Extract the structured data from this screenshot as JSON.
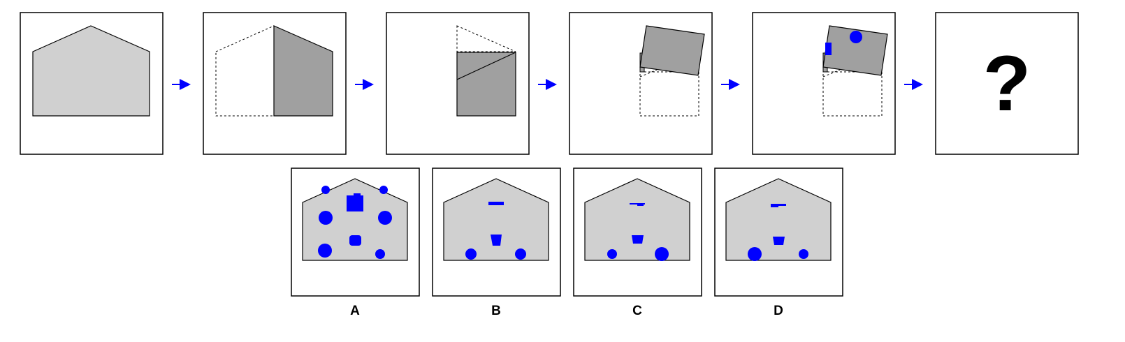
{
  "puzzle": {
    "steps": [
      {
        "id": "step-1-original-pentagon"
      },
      {
        "id": "step-2-fold-left-half"
      },
      {
        "id": "step-3-fold-top-triangle"
      },
      {
        "id": "step-4-fold-up"
      },
      {
        "id": "step-5-punch-holes"
      }
    ],
    "question_mark": "?",
    "options": [
      {
        "label": "A"
      },
      {
        "label": "B"
      },
      {
        "label": "C"
      },
      {
        "label": "D"
      }
    ]
  },
  "colors": {
    "paper": "#d0d0d0",
    "folded_paper": "#a0a0a0",
    "hole": "#0000ff",
    "arrow": "#0000ff",
    "outline": "#000000"
  }
}
